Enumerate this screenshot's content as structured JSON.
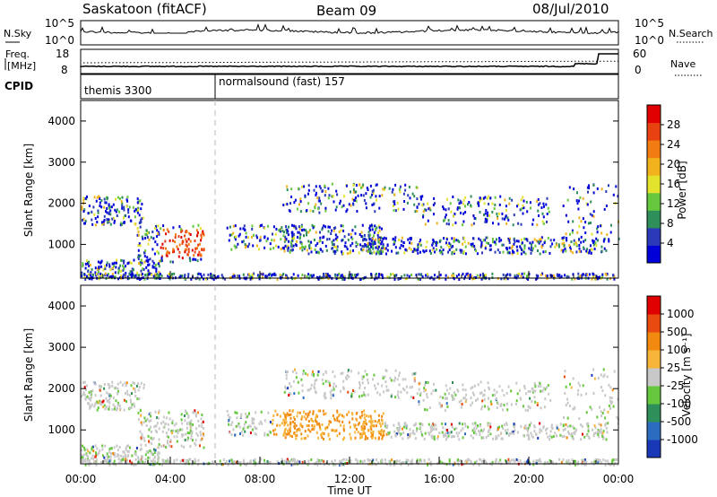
{
  "header": {
    "site": "Saskatoon (fitACF)",
    "beam": "Beam 09",
    "date": "08/Jul/2010"
  },
  "noise_panel": {
    "left_label": "N.Sky",
    "left_ticks": [
      "10^5",
      "10^0"
    ],
    "right_ticks": [
      "10^5",
      "10^0"
    ],
    "right_label": "N.Search"
  },
  "freq_panel": {
    "left_label_1": "Freq.",
    "left_label_2": "[MHz]",
    "left_ticks": [
      "18",
      "8"
    ],
    "right_ticks": [
      "60",
      "0"
    ],
    "right_label": "Nave"
  },
  "cpid_panel": {
    "label": "CPID",
    "modes": [
      {
        "name": "themis 3300",
        "start_hour": 0
      },
      {
        "name": "normalsound (fast) 157",
        "start_hour": 6
      }
    ]
  },
  "chart_data": [
    {
      "type": "heatmap",
      "xlabel": "",
      "ylabel": "Slant Range [km]",
      "ylim": [
        180,
        4500
      ],
      "xlim": [
        0,
        24
      ],
      "y_ticks": [
        1000,
        2000,
        3000,
        4000
      ],
      "colorbar": {
        "label": "Power [dB]",
        "ticks": [
          "28",
          "24",
          "20",
          "16",
          "12",
          "8",
          "4"
        ],
        "colors": [
          "#0000d8",
          "#2a3ab8",
          "#2e8f5a",
          "#66c83c",
          "#e3e22c",
          "#f1b21e",
          "#f27c12",
          "#e84210",
          "#e00000"
        ]
      }
    },
    {
      "type": "heatmap",
      "xlabel": "Time UT",
      "ylabel": "Slant Range [km]",
      "ylim": [
        180,
        4500
      ],
      "xlim": [
        0,
        24
      ],
      "y_ticks": [
        1000,
        2000,
        3000,
        4000
      ],
      "x_ticks": [
        "00:00",
        "04:00",
        "08:00",
        "12:00",
        "16:00",
        "20:00",
        "00:00"
      ],
      "colorbar": {
        "label": "Velocity [m s⁻¹]",
        "ticks": [
          "1000",
          "500",
          "100",
          "25",
          "-25",
          "-100",
          "-500",
          "-1000"
        ],
        "colors": [
          "#1838b8",
          "#2c6cc0",
          "#2e8f5a",
          "#66c83c",
          "#c8c8c8",
          "#f7b53a",
          "#f28a10",
          "#e84a10",
          "#e00000"
        ]
      }
    }
  ]
}
